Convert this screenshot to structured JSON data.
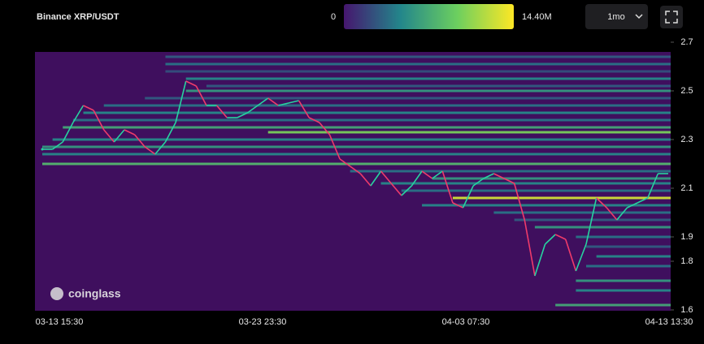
{
  "chart_data": {
    "type": "heatmap",
    "title": "Binance XRP/USDT",
    "colorbar": {
      "min": 0,
      "max": {
        "value": 14400000,
        "label": "14.40M"
      }
    },
    "colorscale": [
      "#46166e",
      "#23868b",
      "#6ccf5f",
      "#fde725"
    ],
    "interval": "1mo",
    "watermark": "coinglass",
    "ylim": [
      1.6,
      2.7
    ],
    "yticks": [
      2.7,
      2.5,
      2.3,
      2.1,
      1.9,
      1.8,
      1.6
    ],
    "xticks": [
      "03-13 15:30",
      "03-23 23:30",
      "04-03 07:30",
      "04-13 13:30"
    ],
    "price": [
      2.26,
      2.26,
      2.29,
      2.37,
      2.44,
      2.42,
      2.34,
      2.29,
      2.34,
      2.32,
      2.27,
      2.24,
      2.29,
      2.37,
      2.54,
      2.52,
      2.44,
      2.44,
      2.39,
      2.39,
      2.41,
      2.44,
      2.47,
      2.44,
      2.45,
      2.46,
      2.39,
      2.37,
      2.32,
      2.22,
      2.19,
      2.16,
      2.11,
      2.17,
      2.12,
      2.07,
      2.11,
      2.17,
      2.14,
      2.17,
      2.04,
      2.02,
      2.11,
      2.14,
      2.16,
      2.14,
      2.12,
      1.97,
      1.74,
      1.87,
      1.91,
      1.89,
      1.76,
      1.87,
      2.06,
      2.02,
      1.97,
      2.02,
      2.04,
      2.06,
      2.16,
      2.16
    ],
    "bands": [
      {
        "price": 2.64,
        "intensity": 3000000,
        "start": 12
      },
      {
        "price": 2.61,
        "intensity": 4000000,
        "start": 12
      },
      {
        "price": 2.58,
        "intensity": 2500000,
        "start": 12
      },
      {
        "price": 2.55,
        "intensity": 5000000,
        "start": 14
      },
      {
        "price": 2.52,
        "intensity": 3000000,
        "start": 16
      },
      {
        "price": 2.5,
        "intensity": 6000000,
        "start": 14
      },
      {
        "price": 2.47,
        "intensity": 3000000,
        "start": 10
      },
      {
        "price": 2.44,
        "intensity": 4000000,
        "start": 6
      },
      {
        "price": 2.41,
        "intensity": 5000000,
        "start": 4
      },
      {
        "price": 2.38,
        "intensity": 4000000,
        "start": 3
      },
      {
        "price": 2.35,
        "intensity": 7000000,
        "start": 2
      },
      {
        "price": 2.33,
        "intensity": 10000000,
        "start": 22
      },
      {
        "price": 2.3,
        "intensity": 5000000,
        "start": 1
      },
      {
        "price": 2.27,
        "intensity": 6000000,
        "start": 0
      },
      {
        "price": 2.24,
        "intensity": 5000000,
        "start": 0
      },
      {
        "price": 2.2,
        "intensity": 8000000,
        "start": 0
      },
      {
        "price": 2.17,
        "intensity": 4000000,
        "start": 30
      },
      {
        "price": 2.14,
        "intensity": 6000000,
        "start": 38
      },
      {
        "price": 2.12,
        "intensity": 5000000,
        "start": 33
      },
      {
        "price": 2.09,
        "intensity": 4000000,
        "start": 35
      },
      {
        "price": 2.06,
        "intensity": 13000000,
        "start": 40
      },
      {
        "price": 2.03,
        "intensity": 5000000,
        "start": 37
      },
      {
        "price": 2.0,
        "intensity": 4000000,
        "start": 44
      },
      {
        "price": 1.97,
        "intensity": 3000000,
        "start": 46
      },
      {
        "price": 1.94,
        "intensity": 6000000,
        "start": 48
      },
      {
        "price": 1.9,
        "intensity": 4000000,
        "start": 52
      },
      {
        "price": 1.86,
        "intensity": 3000000,
        "start": 53
      },
      {
        "price": 1.82,
        "intensity": 5000000,
        "start": 54
      },
      {
        "price": 1.78,
        "intensity": 4000000,
        "start": 53
      },
      {
        "price": 1.72,
        "intensity": 6000000,
        "start": 52
      },
      {
        "price": 1.68,
        "intensity": 5000000,
        "start": 52
      },
      {
        "price": 1.62,
        "intensity": 7000000,
        "start": 50
      }
    ]
  }
}
